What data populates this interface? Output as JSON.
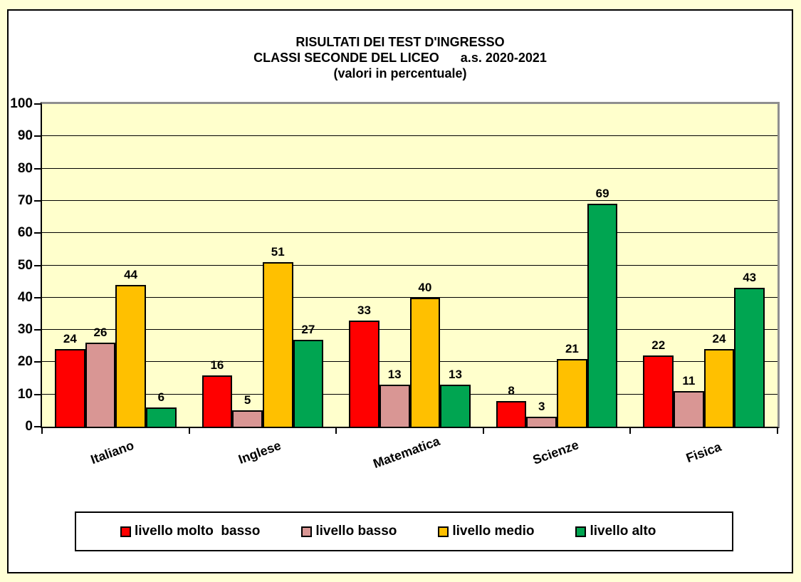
{
  "page": {
    "background": "#FFFFD6",
    "chart_area_background": "#FFFFFF"
  },
  "chart_data": {
    "type": "bar",
    "title": "RISULTATI DEI TEST D'INGRESSO",
    "subtitle": "CLASSI SECONDE DEL LICEO      a.s. 2020-2021",
    "subtitle2": "(valori in percentuale)",
    "categories": [
      "Italiano",
      "Inglese",
      "Matematica",
      "Scienze",
      "Fisica"
    ],
    "series": [
      {
        "name": "livello molto  basso",
        "color": "#FF0000",
        "values": [
          24,
          16,
          33,
          8,
          22
        ]
      },
      {
        "name": "livello basso",
        "color": "#D99694",
        "values": [
          26,
          5,
          13,
          3,
          11
        ]
      },
      {
        "name": "livello medio",
        "color": "#FFC000",
        "values": [
          44,
          51,
          40,
          21,
          24
        ]
      },
      {
        "name": "livello alto",
        "color": "#00A551",
        "values": [
          6,
          27,
          13,
          69,
          43
        ]
      }
    ],
    "ylim": [
      0,
      100
    ],
    "ytick_step": 10,
    "grid": true,
    "data_labels": true,
    "legend_position": "bottom",
    "plot_background": "#FFFFCC",
    "ylabel": "",
    "xlabel": ""
  }
}
